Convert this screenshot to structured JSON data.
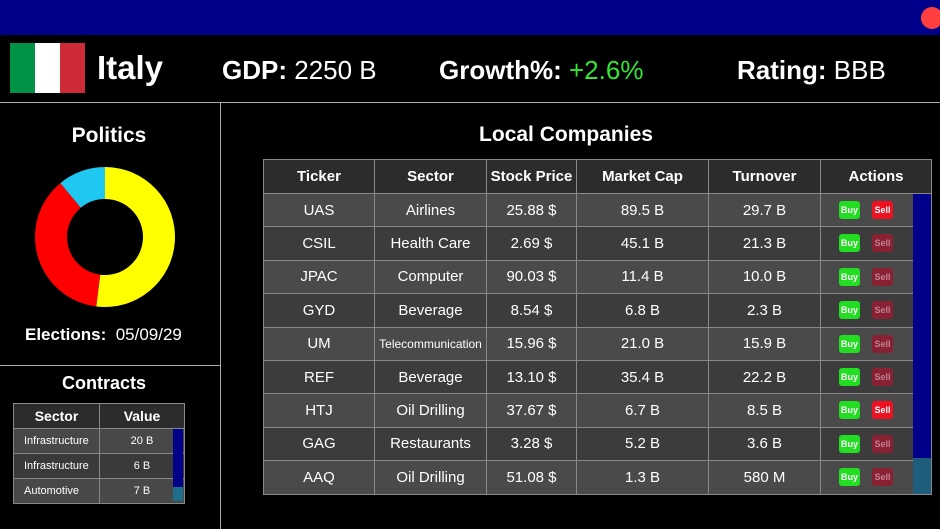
{
  "header": {
    "country": "Italy",
    "gdp_label": "GDP:",
    "gdp": "2250 B",
    "growth_label": "Growth%:",
    "growth": "+2.6%",
    "rating_label": "Rating:",
    "rating": "BBB"
  },
  "politics": {
    "title": "Politics",
    "chart": {
      "type": "pie",
      "values": [
        52,
        37,
        11
      ],
      "colors": [
        "#ffff00",
        "#ff0000",
        "#1ec8f0"
      ]
    },
    "elections_label": "Elections:",
    "elections_date": "05/09/29"
  },
  "contracts": {
    "title": "Contracts",
    "columns": [
      "Sector",
      "Value"
    ],
    "rows": [
      [
        "Infrastructure",
        "20 B"
      ],
      [
        "Infrastructure",
        "6 B"
      ],
      [
        "Automotive",
        "7 B"
      ]
    ]
  },
  "companies": {
    "title": "Local Companies",
    "columns": [
      "Ticker",
      "Sector",
      "Stock Price",
      "Market Cap",
      "Turnover",
      "Actions"
    ],
    "buy": "Buy",
    "sell": "Sell",
    "rows": [
      [
        "UAS",
        "Airlines",
        "25.88 $",
        "89.5 B",
        "29.7 B"
      ],
      [
        "CSIL",
        "Health Care",
        "2.69 $",
        "45.1 B",
        "21.3 B"
      ],
      [
        "JPAC",
        "Computer",
        "90.03 $",
        "11.4 B",
        "10.0 B"
      ],
      [
        "GYD",
        "Beverage",
        "8.54 $",
        "6.8 B",
        "2.3 B"
      ],
      [
        "UM",
        "Telecommunication",
        "15.96 $",
        "21.0 B",
        "15.9 B"
      ],
      [
        "REF",
        "Beverage",
        "13.10 $",
        "35.4 B",
        "22.2 B"
      ],
      [
        "HTJ",
        "Oil Drilling",
        "37.67 $",
        "6.7 B",
        "8.5 B"
      ],
      [
        "GAG",
        "Restaurants",
        "3.28 $",
        "5.2 B",
        "3.6 B"
      ],
      [
        "AAQ",
        "Oil Drilling",
        "51.08 $",
        "1.3 B",
        "580 M"
      ]
    ],
    "sell_active": [
      true,
      false,
      false,
      false,
      false,
      false,
      true,
      false,
      false
    ]
  }
}
